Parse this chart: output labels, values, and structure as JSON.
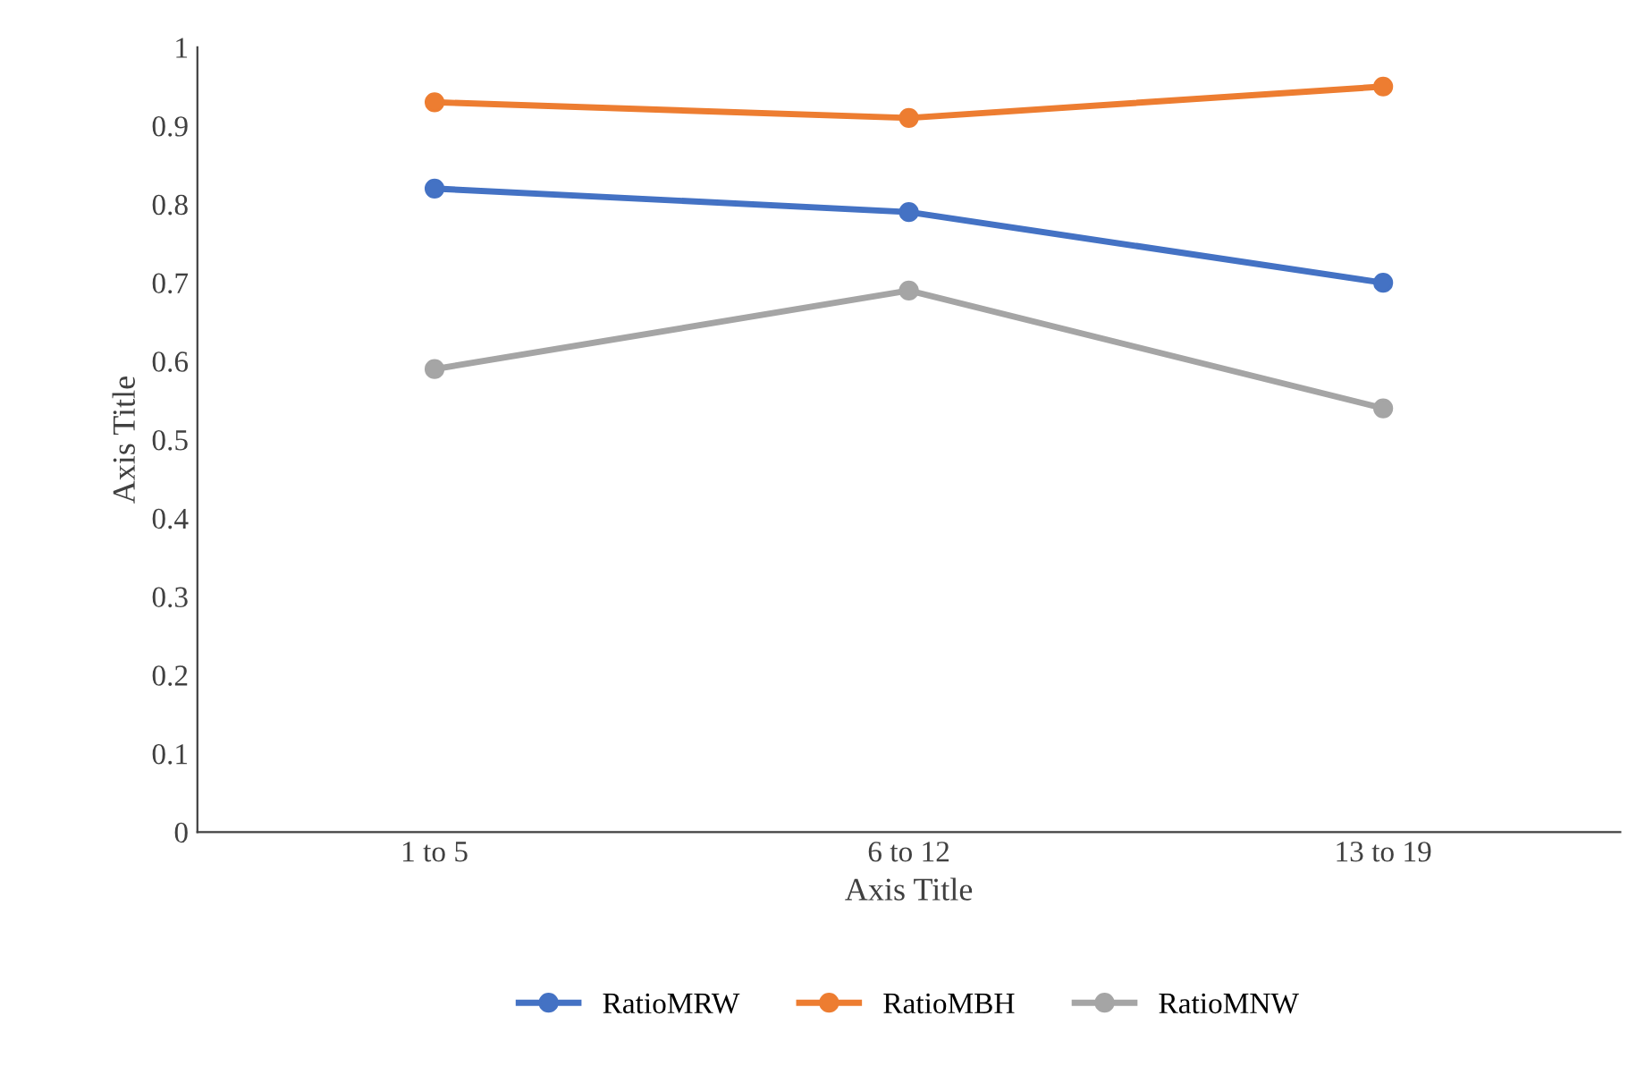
{
  "chart_data": {
    "type": "line",
    "xlabel": "Axis Title",
    "ylabel": "Axis Title",
    "categories": [
      "1 to 5",
      "6 to 12",
      "13 to 19"
    ],
    "series": [
      {
        "name": "RatioMRW",
        "color": "#4472c4",
        "values": [
          0.82,
          0.79,
          0.7
        ]
      },
      {
        "name": "RatioMBH",
        "color": "#ed7d31",
        "values": [
          0.93,
          0.91,
          0.95
        ]
      },
      {
        "name": "RatioMNW",
        "color": "#a5a5a5",
        "values": [
          0.59,
          0.69,
          0.54
        ]
      }
    ],
    "ylim": [
      0,
      1
    ],
    "yticks": [
      0,
      0.1,
      0.2,
      0.3,
      0.4,
      0.5,
      0.6,
      0.7,
      0.8,
      0.9,
      1
    ],
    "grid": false,
    "legend": "bottom",
    "marker": "circle",
    "line_style": "solid"
  }
}
